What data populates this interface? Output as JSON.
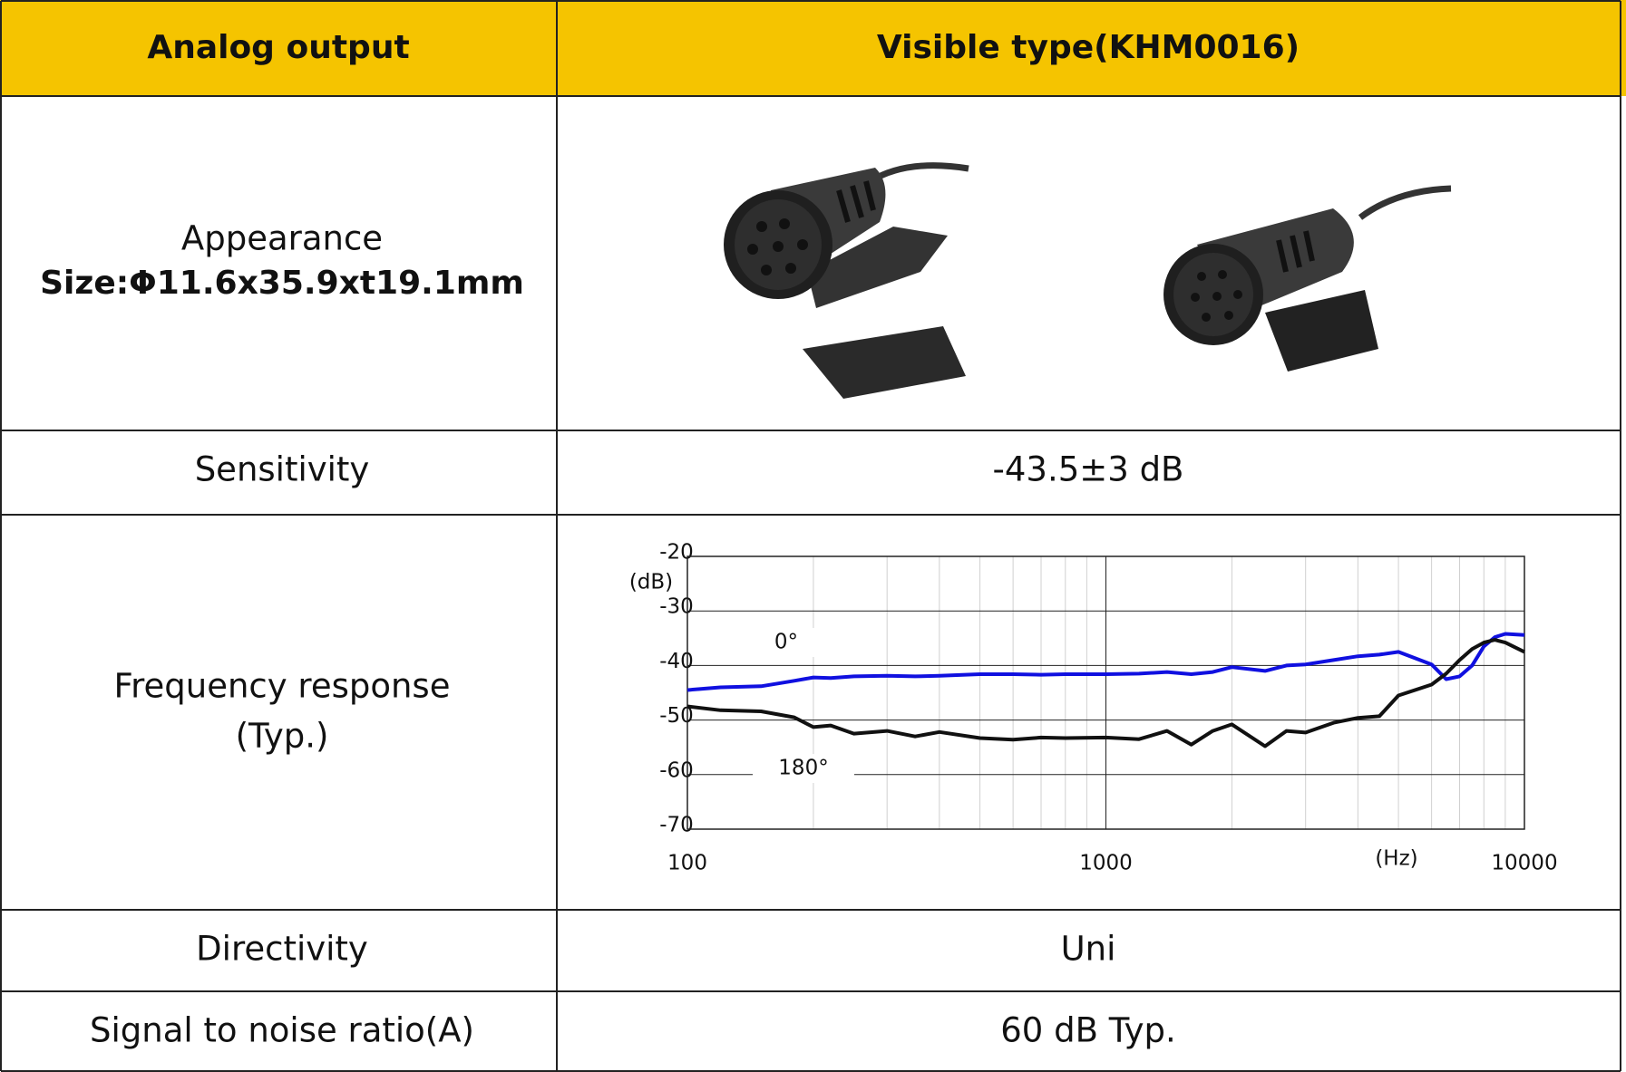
{
  "table": {
    "header": [
      "Analog output",
      "Visible type(KHM0016)"
    ],
    "rows": [
      {
        "label": "Appearance",
        "sublabel": "Size:Φ11.6x35.9xt19.1mm"
      },
      {
        "label": "Sensitivity",
        "value": "-43.5±3 dB"
      },
      {
        "label": "Frequency response",
        "sublabel": "(Typ.)"
      },
      {
        "label": "Directivity",
        "value": "Uni"
      },
      {
        "label": "Signal to noise ratio(A)",
        "value": "60 dB Typ."
      }
    ]
  },
  "chart_data": {
    "type": "line",
    "xscale": "log",
    "x": [
      100,
      120,
      150,
      180,
      200,
      220,
      250,
      300,
      350,
      400,
      500,
      600,
      700,
      800,
      1000,
      1200,
      1400,
      1600,
      1800,
      2000,
      2400,
      2700,
      3000,
      3500,
      4000,
      4500,
      5000,
      6000,
      6500,
      7000,
      7500,
      8000,
      8500,
      9000,
      10000
    ],
    "series": [
      {
        "name": "0°",
        "color": "#1010e0",
        "values": [
          -44.5,
          -44,
          -43.8,
          -42.8,
          -42.2,
          -42.3,
          -42,
          -41.9,
          -42,
          -41.9,
          -41.6,
          -41.6,
          -41.7,
          -41.6,
          -41.6,
          -41.5,
          -41.2,
          -41.6,
          -41.2,
          -40.3,
          -41,
          -40,
          -39.8,
          -39,
          -38.3,
          -38,
          -37.5,
          -39.8,
          -42.5,
          -42,
          -40,
          -36.5,
          -34.8,
          -34.2,
          -34.4
        ]
      },
      {
        "name": "180°",
        "color": "#111111",
        "values": [
          -47.5,
          -48.2,
          -48.4,
          -49.5,
          -51.3,
          -51,
          -52.5,
          -52,
          -53,
          -52.2,
          -53.3,
          -53.6,
          -53.2,
          -53.3,
          -53.2,
          -53.5,
          -52,
          -54.5,
          -52,
          -50.8,
          -54.8,
          -52,
          -52.3,
          -50.5,
          -49.6,
          -49.3,
          -45.5,
          -43.5,
          -41.5,
          -39,
          -37,
          -35.8,
          -35.3,
          -35.8,
          -37.5
        ]
      }
    ],
    "xlim": [
      100,
      10000
    ],
    "xticks": [
      100,
      1000,
      10000
    ],
    "xminorticks": [
      200,
      300,
      400,
      500,
      600,
      700,
      800,
      900,
      2000,
      3000,
      4000,
      5000,
      6000,
      7000,
      8000,
      9000
    ],
    "ylim": [
      -70,
      -20
    ],
    "yticks": [
      -70,
      -60,
      -50,
      -40,
      -30,
      -20
    ],
    "y_unit": "(dB)",
    "x_unit": "(Hz)",
    "grid": true
  }
}
